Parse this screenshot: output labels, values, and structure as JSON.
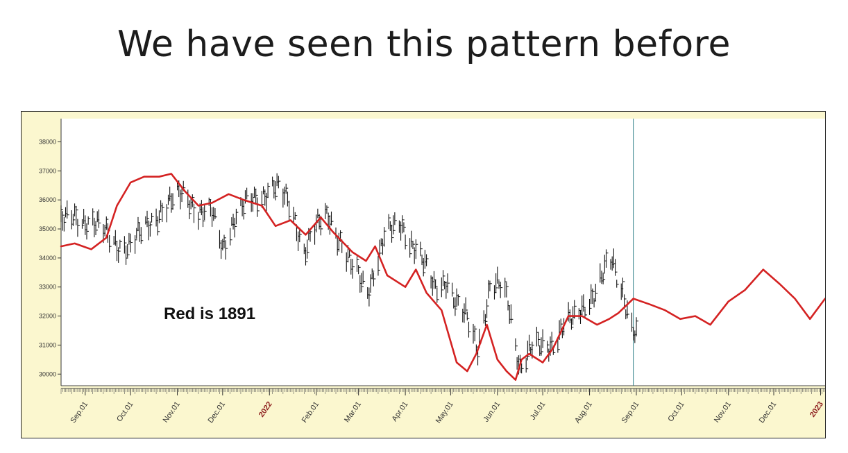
{
  "slide": {
    "title": "We have seen this pattern before"
  },
  "colors": {
    "overlay_line": "#d42222",
    "price_bars": "#111111",
    "plot_bg": "#ffffff",
    "frame_bg": "#fbf7cf",
    "cursor_line": "#2f7f86",
    "year_label": "#8b1a1a"
  },
  "chart_data": {
    "type": "line",
    "title": "",
    "annotation": "Red is 1891",
    "ylim": [
      29600,
      38800
    ],
    "y_ticks": [
      30000,
      31000,
      32000,
      33000,
      34000,
      35000,
      36000,
      37000,
      38000
    ],
    "y_tick_labels": [
      "30000",
      "31000",
      "32000",
      "33000",
      "34000",
      "35000",
      "36000",
      "37000",
      "38000"
    ],
    "x_range": [
      "2021-08-16",
      "2023-01-04"
    ],
    "x_ticks": [
      "2021-09-01",
      "2021-10-01",
      "2021-11-01",
      "2021-12-01",
      "2022-01-01",
      "2022-02-01",
      "2022-03-01",
      "2022-04-01",
      "2022-05-01",
      "2022-06-01",
      "2022-07-01",
      "2022-08-01",
      "2022-09-01",
      "2022-10-01",
      "2022-11-01",
      "2022-12-01",
      "2023-01-01"
    ],
    "x_tick_labels": [
      "Sep.01",
      "Oct.01",
      "Nov.01",
      "Dec.01",
      "2022",
      "Feb.01",
      "Mar.01",
      "Apr.01",
      "May.01",
      "Jun.01",
      "Jul.01",
      "Aug.01",
      "Sep.01",
      "Oct.01",
      "Nov.01",
      "Dec.01",
      "2023"
    ],
    "x_year_ticks": [
      "2022",
      "2023"
    ],
    "cursor_date": "2022-08-30",
    "series": [
      {
        "name": "1891",
        "style": "line",
        "x": [
          "2021-08-16",
          "2021-08-25",
          "2021-09-05",
          "2021-09-15",
          "2021-09-22",
          "2021-10-01",
          "2021-10-10",
          "2021-10-20",
          "2021-10-28",
          "2021-11-06",
          "2021-11-15",
          "2021-11-24",
          "2021-12-05",
          "2021-12-15",
          "2021-12-27",
          "2022-01-05",
          "2022-01-15",
          "2022-01-25",
          "2022-02-04",
          "2022-02-12",
          "2022-02-25",
          "2022-03-06",
          "2022-03-12",
          "2022-03-20",
          "2022-04-01",
          "2022-04-08",
          "2022-04-15",
          "2022-04-25",
          "2022-05-05",
          "2022-05-12",
          "2022-05-18",
          "2022-05-25",
          "2022-06-01",
          "2022-06-07",
          "2022-06-13",
          "2022-06-17",
          "2022-06-22",
          "2022-07-01",
          "2022-07-08",
          "2022-07-18",
          "2022-07-27",
          "2022-08-06",
          "2022-08-14",
          "2022-08-20",
          "2022-08-30",
          "2022-09-10",
          "2022-09-20",
          "2022-09-30",
          "2022-10-10",
          "2022-10-20",
          "2022-11-01",
          "2022-11-12",
          "2022-11-24",
          "2022-12-05",
          "2022-12-15",
          "2022-12-25",
          "2023-01-04"
        ],
        "values": [
          34400,
          34500,
          34300,
          34700,
          35800,
          36600,
          36800,
          36800,
          36900,
          36300,
          35800,
          35900,
          36200,
          36000,
          35800,
          35100,
          35300,
          34800,
          35400,
          34900,
          34200,
          33900,
          34400,
          33400,
          33000,
          33600,
          32800,
          32200,
          30400,
          30100,
          30700,
          31700,
          30500,
          30100,
          29800,
          30500,
          30700,
          30400,
          30900,
          32000,
          32000,
          31700,
          31900,
          32100,
          32600,
          32400,
          32200,
          31900,
          32000,
          31700,
          32500,
          32900,
          33600,
          33100,
          32600,
          31900,
          32600
        ]
      },
      {
        "name": "2022",
        "style": "ohlc-bars",
        "x": [
          "2021-08-16",
          "2021-08-25",
          "2021-09-05",
          "2021-09-15",
          "2021-09-22",
          "2021-10-01",
          "2021-10-10",
          "2021-10-20",
          "2021-10-28",
          "2021-11-06",
          "2021-11-15",
          "2021-11-24",
          "2021-12-01",
          "2021-12-08",
          "2021-12-16",
          "2021-12-24",
          "2022-01-04",
          "2022-01-15",
          "2022-01-24",
          "2022-02-02",
          "2022-02-09",
          "2022-02-18",
          "2022-02-24",
          "2022-03-07",
          "2022-03-18",
          "2022-03-29",
          "2022-04-08",
          "2022-04-20",
          "2022-04-28",
          "2022-05-05",
          "2022-05-12",
          "2022-05-19",
          "2022-05-27",
          "2022-06-03",
          "2022-06-08",
          "2022-06-16",
          "2022-06-23",
          "2022-06-30",
          "2022-07-08",
          "2022-07-15",
          "2022-07-22",
          "2022-07-29",
          "2022-08-05",
          "2022-08-12",
          "2022-08-16",
          "2022-08-23",
          "2022-08-29",
          "2022-09-01"
        ],
        "values": [
          35200,
          35400,
          35300,
          34800,
          34500,
          34400,
          35000,
          35600,
          35900,
          36300,
          35600,
          35500,
          34400,
          35300,
          35800,
          36100,
          36500,
          35800,
          34300,
          35100,
          35500,
          34500,
          33700,
          32900,
          34700,
          35200,
          34300,
          33000,
          33300,
          32300,
          31900,
          31000,
          32900,
          33000,
          32600,
          30200,
          30800,
          31000,
          31100,
          31600,
          31900,
          32500,
          32800,
          33600,
          33900,
          32900,
          31600,
          31300
        ]
      }
    ]
  }
}
